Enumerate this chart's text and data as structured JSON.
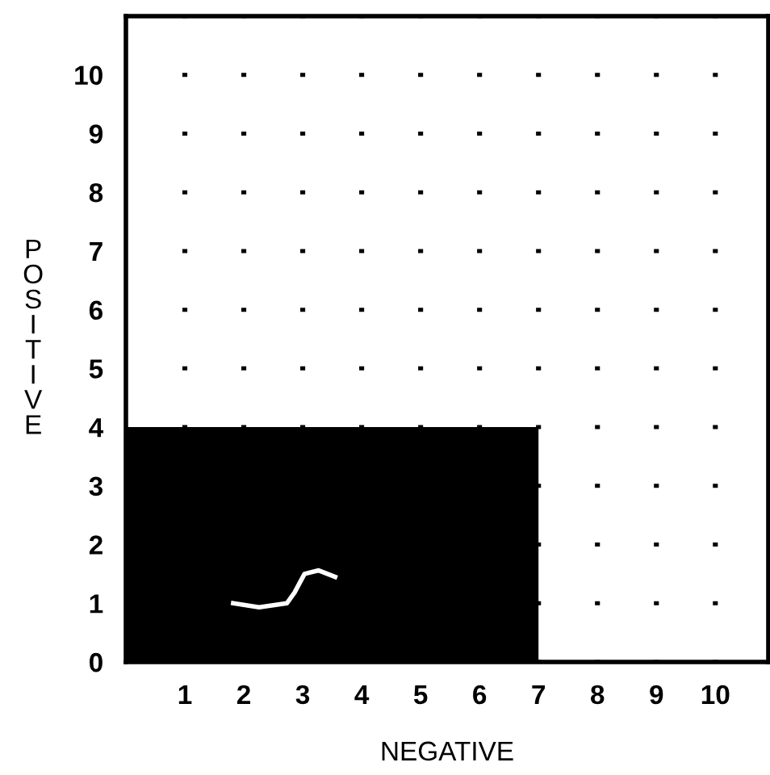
{
  "chart_data": {
    "type": "line",
    "xlabel": "NEGATIVE",
    "ylabel": "POSITIVE",
    "xlim": [
      0,
      10.9
    ],
    "ylim": [
      0,
      11
    ],
    "xticks": [
      1,
      2,
      3,
      4,
      5,
      6,
      7,
      8,
      9,
      10
    ],
    "yticks": [
      0,
      1,
      2,
      3,
      4,
      5,
      6,
      7,
      8,
      9,
      10
    ],
    "grid": true,
    "series": [
      {
        "type": "area",
        "color": "#000000",
        "x": [
          0,
          7
        ],
        "values": [
          4,
          4
        ]
      },
      {
        "color": "#ffffff",
        "x": [
          1.82,
          2.26,
          2.73,
          2.86,
          3.03,
          3.27,
          3.55
        ],
        "values": [
          1.0,
          0.93,
          1.0,
          1.18,
          1.5,
          1.56,
          1.45
        ]
      }
    ]
  }
}
